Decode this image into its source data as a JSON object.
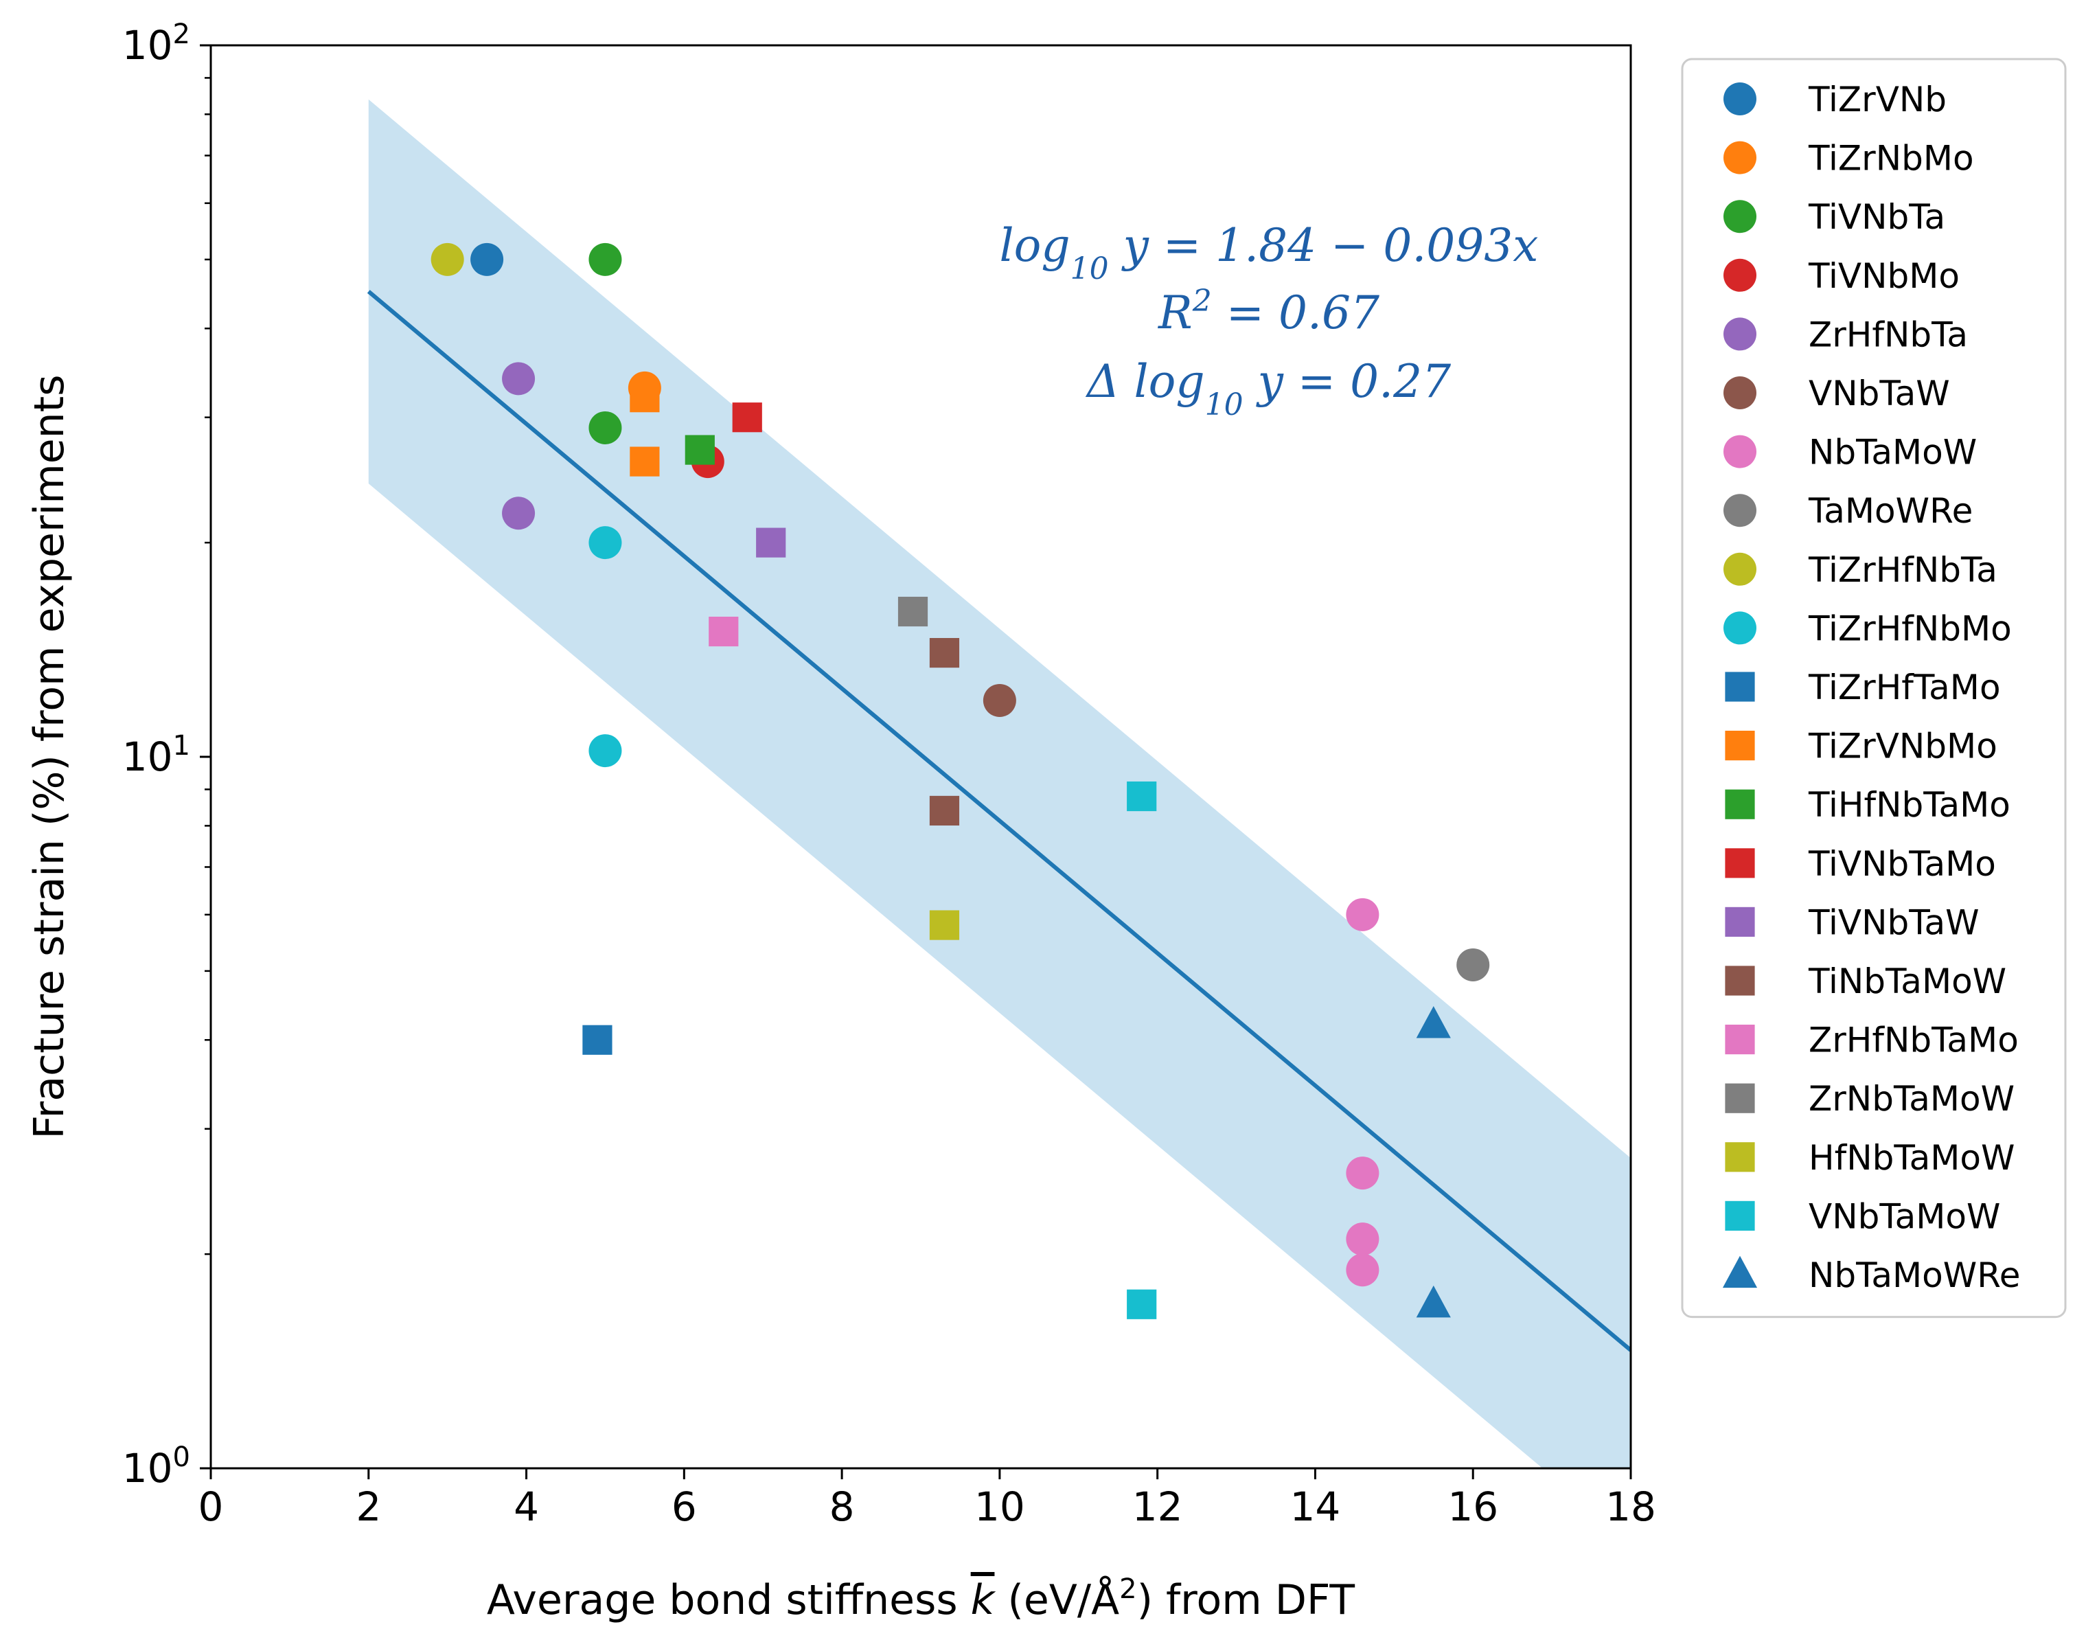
{
  "chart_data": {
    "type": "scatter",
    "x_scale": "linear",
    "y_scale": "log",
    "xlim": [
      0,
      18
    ],
    "ylim": [
      1,
      100
    ],
    "x_ticks": [
      0,
      2,
      4,
      6,
      8,
      10,
      12,
      14,
      16,
      18
    ],
    "y_ticks": [
      {
        "value": 1,
        "base": "10",
        "exp": "0"
      },
      {
        "value": 10,
        "base": "10",
        "exp": "1"
      },
      {
        "value": 100,
        "base": "10",
        "exp": "2"
      }
    ],
    "xlabel": {
      "pre": "Average bond stiffness ",
      "symbol": "k",
      "mid": " (eV/Å",
      "sup": "2",
      "post": ") from DFT"
    },
    "ylabel": "Fracture strain (%) from experiments",
    "fit": {
      "intercept": 1.84,
      "slope": -0.093,
      "band": 0.27,
      "x_range": [
        2,
        18
      ],
      "color": "#1f77b4",
      "band_color": "#c9e2f1"
    },
    "annotation": [
      {
        "pre": "log",
        "sub": "10",
        "post": " y = 1.84 − 0.093x"
      },
      {
        "pre": "R",
        "sup": "2",
        "post": " = 0.67"
      },
      {
        "pre": "Δ log",
        "sub": "10",
        "post": " y = 0.27"
      }
    ],
    "legend_position": "outside-right",
    "series": [
      {
        "name": "TiZrVNb",
        "marker": "circle",
        "color": "#1f77b4",
        "points": [
          [
            3.5,
            50
          ]
        ]
      },
      {
        "name": "TiZrNbMo",
        "marker": "circle",
        "color": "#ff7f0e",
        "points": [
          [
            5.5,
            33
          ]
        ]
      },
      {
        "name": "TiVNbTa",
        "marker": "circle",
        "color": "#2ca02c",
        "points": [
          [
            5.0,
            50
          ],
          [
            5.0,
            29
          ]
        ]
      },
      {
        "name": "TiVNbMo",
        "marker": "circle",
        "color": "#d62728",
        "points": [
          [
            6.3,
            26
          ]
        ]
      },
      {
        "name": "ZrHfNbTa",
        "marker": "circle",
        "color": "#9467bd",
        "points": [
          [
            3.9,
            34
          ],
          [
            3.9,
            22
          ]
        ]
      },
      {
        "name": "VNbTaW",
        "marker": "circle",
        "color": "#8c564b",
        "points": [
          [
            10.0,
            12
          ]
        ]
      },
      {
        "name": "NbTaMoW",
        "marker": "circle",
        "color": "#e377c2",
        "points": [
          [
            14.6,
            6.0
          ],
          [
            14.6,
            2.6
          ],
          [
            14.6,
            2.1
          ],
          [
            14.6,
            1.9
          ]
        ]
      },
      {
        "name": "TaMoWRe",
        "marker": "circle",
        "color": "#7f7f7f",
        "points": [
          [
            16.0,
            5.1
          ]
        ]
      },
      {
        "name": "TiZrHfNbTa",
        "marker": "circle",
        "color": "#bcbd22",
        "points": [
          [
            3.0,
            50
          ]
        ]
      },
      {
        "name": "TiZrHfNbMo",
        "marker": "circle",
        "color": "#17becf",
        "points": [
          [
            5.0,
            20
          ],
          [
            5.0,
            10.2
          ]
        ]
      },
      {
        "name": "TiZrHfTaMo",
        "marker": "square",
        "color": "#1f77b4",
        "points": [
          [
            4.9,
            4.0
          ]
        ]
      },
      {
        "name": "TiZrVNbMo",
        "marker": "square",
        "color": "#ff7f0e",
        "points": [
          [
            5.5,
            32
          ],
          [
            5.5,
            26
          ]
        ]
      },
      {
        "name": "TiHfNbTaMo",
        "marker": "square",
        "color": "#2ca02c",
        "points": [
          [
            6.2,
            27
          ]
        ]
      },
      {
        "name": "TiVNbTaMo",
        "marker": "square",
        "color": "#d62728",
        "points": [
          [
            6.8,
            30
          ]
        ]
      },
      {
        "name": "TiVNbTaW",
        "marker": "square",
        "color": "#9467bd",
        "points": [
          [
            7.1,
            20
          ]
        ]
      },
      {
        "name": "TiNbTaMoW",
        "marker": "square",
        "color": "#8c564b",
        "points": [
          [
            9.3,
            14
          ],
          [
            9.3,
            8.4
          ]
        ]
      },
      {
        "name": "ZrHfNbTaMo",
        "marker": "square",
        "color": "#e377c2",
        "points": [
          [
            6.5,
            15
          ]
        ]
      },
      {
        "name": "ZrNbTaMoW",
        "marker": "square",
        "color": "#7f7f7f",
        "points": [
          [
            8.9,
            16
          ]
        ]
      },
      {
        "name": "HfNbTaMoW",
        "marker": "square",
        "color": "#bcbd22",
        "points": [
          [
            9.3,
            5.8
          ]
        ]
      },
      {
        "name": "VNbTaMoW",
        "marker": "square",
        "color": "#17becf",
        "points": [
          [
            11.8,
            8.8
          ],
          [
            11.8,
            1.7
          ]
        ]
      },
      {
        "name": "NbTaMoWRe",
        "marker": "triangle",
        "color": "#1f77b4",
        "points": [
          [
            15.5,
            4.2
          ],
          [
            15.5,
            1.7
          ]
        ]
      }
    ]
  }
}
